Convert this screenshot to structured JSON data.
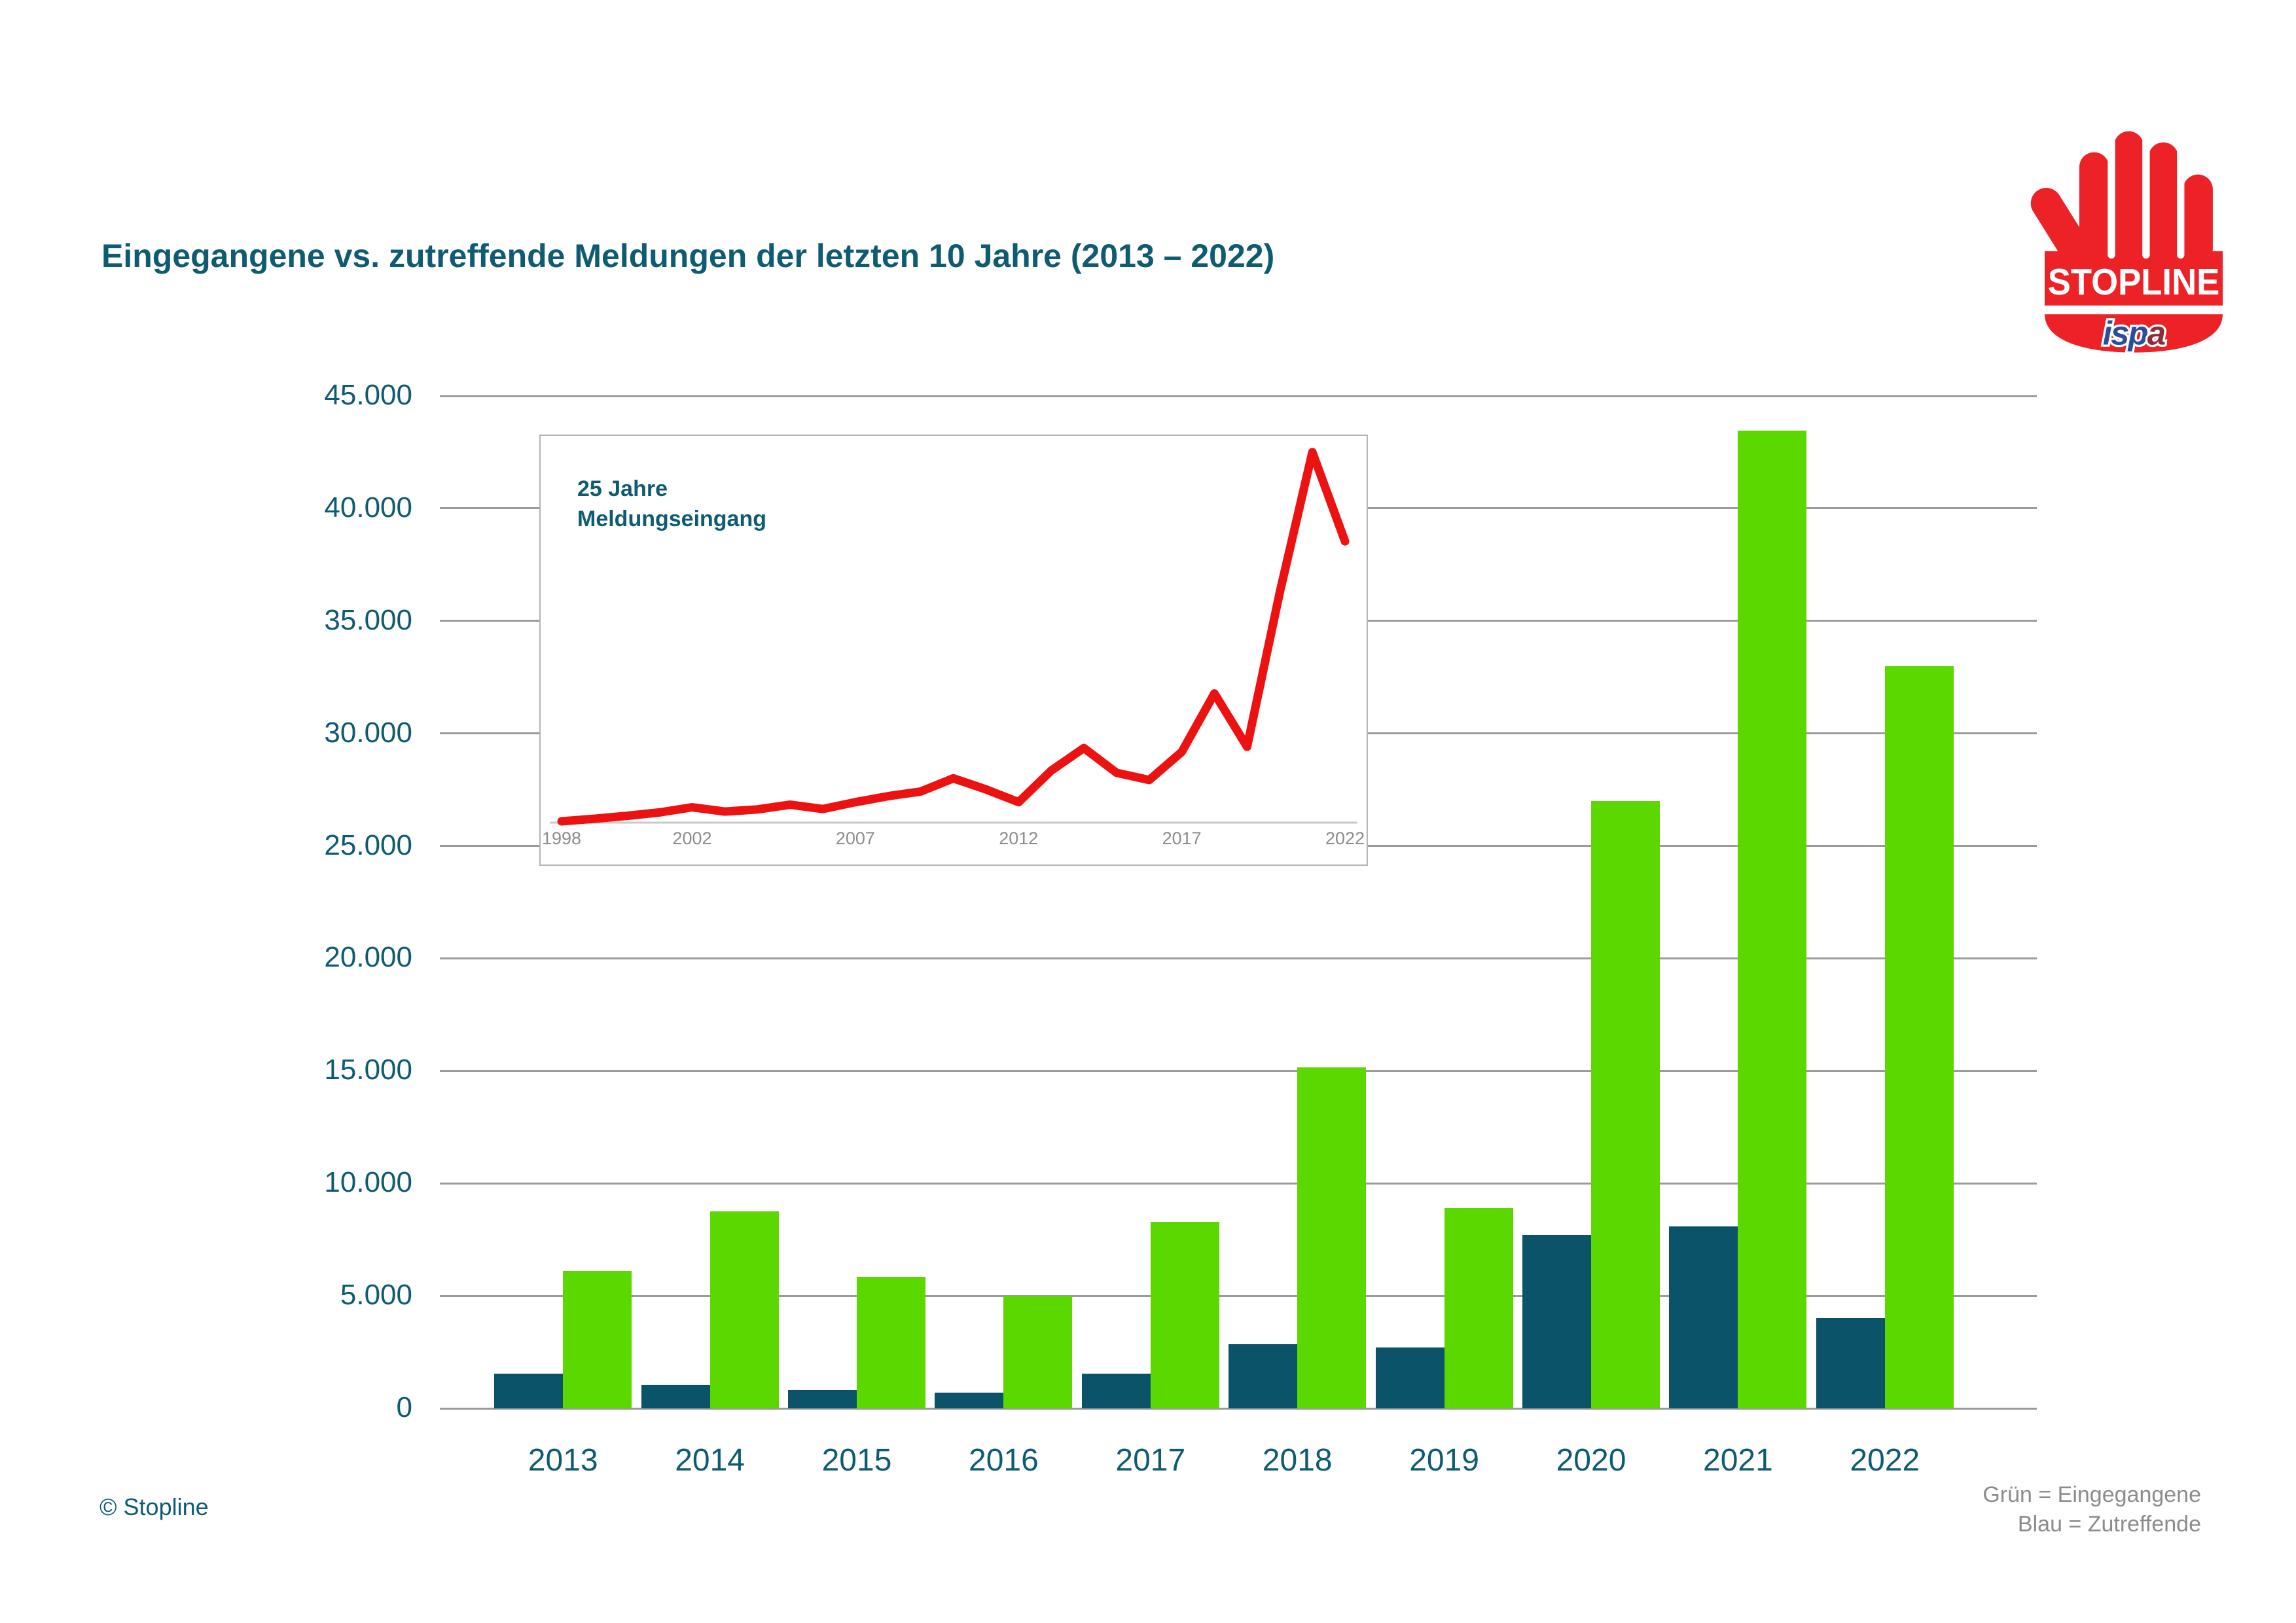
{
  "page": {
    "title": "Eingegangene vs. zutreffende Meldungen der letzten 10 Jahre (2013 – 2022)",
    "copyright": "© Stopline"
  },
  "legend": {
    "line1": "Grün = Eingegangene",
    "line2": "Blau = Zutreffende"
  },
  "logo": {
    "text": "STOPLINE",
    "subtext": "ispa",
    "subtext_main": "isp",
    "subtext_last": "a"
  },
  "colors": {
    "green": "#5BD800",
    "blue": "#0A5368",
    "teal_text": "#0F5B72",
    "red_line": "#ED1212",
    "red_logo": "#EC2227",
    "grid_gray": "#9B9B9B",
    "footer_gray": "#8C8C8C",
    "ispa_blue": "#2B4E9B",
    "ispa_maroon": "#8C2D3C"
  },
  "chart_data": [
    {
      "type": "bar",
      "title": "Eingegangene vs. zutreffende Meldungen der letzten 10 Jahre (2013 – 2022)",
      "categories": [
        "2013",
        "2014",
        "2015",
        "2016",
        "2017",
        "2018",
        "2019",
        "2020",
        "2021",
        "2022"
      ],
      "series": [
        {
          "name": "Eingegangene",
          "color_key": "green",
          "values": [
            6100,
            8750,
            5850,
            5000,
            8300,
            15150,
            8900,
            27000,
            43450,
            33000
          ]
        },
        {
          "name": "Zutreffende",
          "color_key": "blue",
          "values": [
            1550,
            1050,
            800,
            700,
            1550,
            2850,
            2700,
            7700,
            8100,
            4000
          ]
        }
      ],
      "ylim": [
        0,
        45000
      ],
      "ytick_values": [
        0,
        5000,
        10000,
        15000,
        20000,
        25000,
        30000,
        35000,
        40000,
        45000
      ],
      "ytick_labels": [
        "0",
        "5.000",
        "10.000",
        "15.000",
        "20.000",
        "25.000",
        "30.000",
        "35.000",
        "40.000",
        "45.000"
      ],
      "grid": true,
      "legend_position": "bottom-right"
    },
    {
      "type": "line",
      "title": "25 Jahre Meldungseingang",
      "title_lines": [
        "25 Jahre",
        "Meldungseingang"
      ],
      "x": [
        1998,
        1999,
        2000,
        2001,
        2002,
        2003,
        2004,
        2005,
        2006,
        2007,
        2008,
        2009,
        2010,
        2011,
        2012,
        2013,
        2014,
        2015,
        2016,
        2017,
        2018,
        2019,
        2020,
        2021,
        2022
      ],
      "values": [
        150,
        450,
        800,
        1200,
        1800,
        1300,
        1550,
        2100,
        1600,
        2400,
        3100,
        3650,
        5200,
        3900,
        2400,
        6100,
        8750,
        5850,
        5000,
        8300,
        15150,
        8900,
        27000,
        43450,
        33000
      ],
      "xtick_labels": [
        "1998",
        "2002",
        "2007",
        "2012",
        "2017",
        "2022"
      ],
      "xtick_years": [
        1998,
        2002,
        2007,
        2012,
        2017,
        2022
      ],
      "ylim": [
        0,
        45000
      ],
      "grid": false,
      "line_color": "#ED1212"
    }
  ]
}
